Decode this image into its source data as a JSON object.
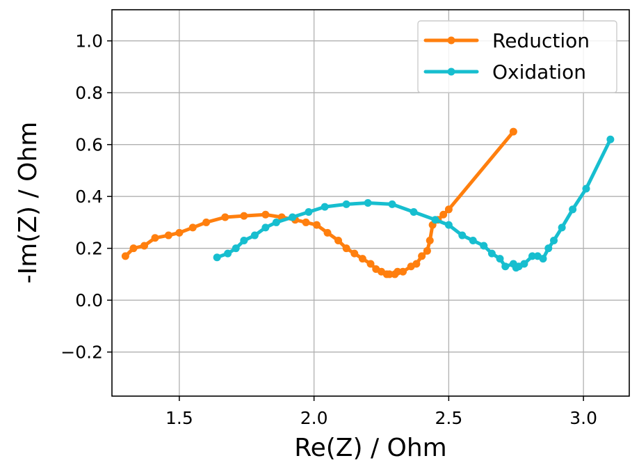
{
  "chart_data": {
    "type": "line",
    "title": "",
    "xlabel": "Re(Z) / Ohm",
    "ylabel": "-Im(Z) / Ohm",
    "xlim": [
      1.25,
      3.17
    ],
    "ylim": [
      -0.37,
      1.12
    ],
    "xticks": [
      1.5,
      2.0,
      2.5,
      3.0
    ],
    "xtick_labels": [
      "1.5",
      "2.0",
      "2.5",
      "3.0"
    ],
    "yticks": [
      -0.2,
      0.0,
      0.2,
      0.4,
      0.6,
      0.8,
      1.0
    ],
    "ytick_labels": [
      "−0.2",
      "0.0",
      "0.2",
      "0.4",
      "0.6",
      "0.8",
      "1.0"
    ],
    "grid": true,
    "legend_position": "top-right",
    "series": [
      {
        "name": "Reduction",
        "color": "#ff7f0e",
        "x": [
          1.3,
          1.33,
          1.37,
          1.41,
          1.46,
          1.5,
          1.55,
          1.6,
          1.67,
          1.74,
          1.82,
          1.88,
          1.93,
          1.97,
          2.01,
          2.05,
          2.09,
          2.12,
          2.15,
          2.18,
          2.21,
          2.23,
          2.25,
          2.27,
          2.28,
          2.3,
          2.31,
          2.33,
          2.36,
          2.38,
          2.4,
          2.42,
          2.43,
          2.44,
          2.46,
          2.48,
          2.5,
          2.74
        ],
        "y": [
          0.17,
          0.2,
          0.21,
          0.24,
          0.25,
          0.26,
          0.28,
          0.3,
          0.32,
          0.325,
          0.33,
          0.32,
          0.31,
          0.3,
          0.29,
          0.26,
          0.23,
          0.2,
          0.18,
          0.16,
          0.14,
          0.12,
          0.11,
          0.1,
          0.1,
          0.1,
          0.11,
          0.11,
          0.13,
          0.14,
          0.17,
          0.19,
          0.23,
          0.29,
          0.31,
          0.33,
          0.35,
          0.65
        ]
      },
      {
        "name": "Oxidation",
        "color": "#17becf",
        "x": [
          1.64,
          1.68,
          1.71,
          1.74,
          1.78,
          1.82,
          1.86,
          1.92,
          1.98,
          2.04,
          2.12,
          2.2,
          2.29,
          2.37,
          2.45,
          2.5,
          2.55,
          2.59,
          2.63,
          2.66,
          2.69,
          2.71,
          2.74,
          2.75,
          2.76,
          2.78,
          2.81,
          2.83,
          2.85,
          2.87,
          2.89,
          2.92,
          2.96,
          3.01,
          3.1
        ],
        "y": [
          0.165,
          0.18,
          0.2,
          0.23,
          0.25,
          0.28,
          0.3,
          0.32,
          0.34,
          0.36,
          0.37,
          0.375,
          0.37,
          0.34,
          0.31,
          0.29,
          0.25,
          0.23,
          0.21,
          0.18,
          0.16,
          0.13,
          0.14,
          0.125,
          0.13,
          0.14,
          0.17,
          0.17,
          0.16,
          0.2,
          0.23,
          0.28,
          0.35,
          0.43,
          0.62
        ]
      }
    ]
  }
}
